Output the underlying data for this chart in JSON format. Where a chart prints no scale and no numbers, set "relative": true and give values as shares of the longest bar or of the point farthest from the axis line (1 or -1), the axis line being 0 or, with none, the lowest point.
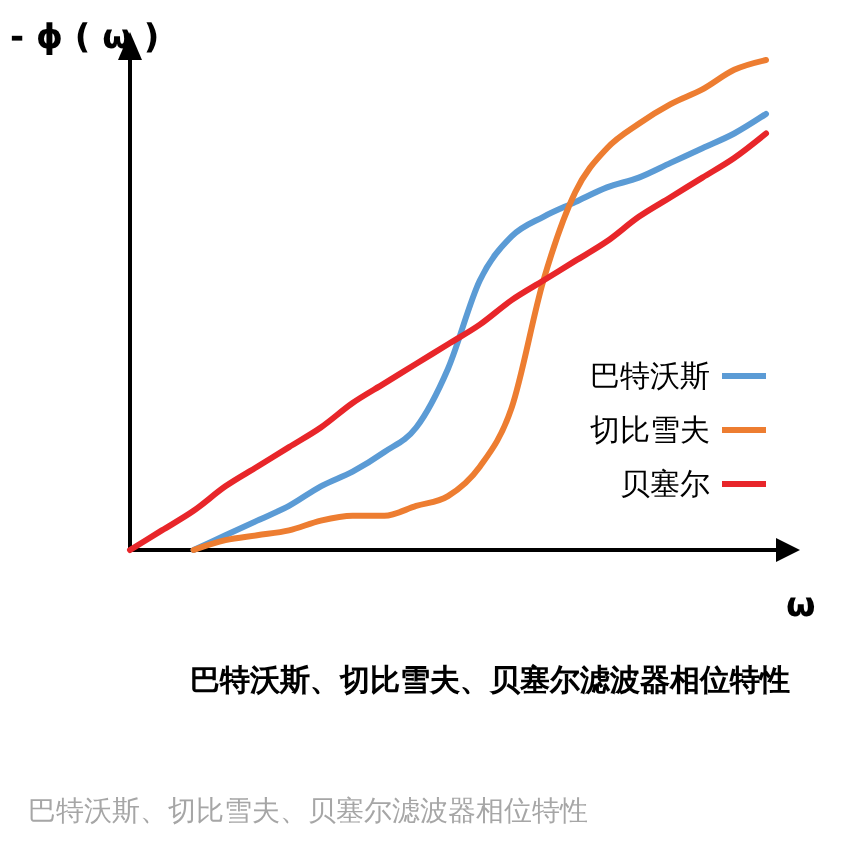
{
  "chart_data": {
    "type": "line",
    "relative": true,
    "title": "巴特沃斯、切比雪夫、贝塞尔滤波器相位特性",
    "xlabel": "ω",
    "ylabel": "- ϕ ( ω )",
    "annotations": [
      "巴特沃斯、切比雪夫、贝塞尔滤波器相位特性"
    ],
    "legend": "right",
    "categories": [
      null,
      null,
      null,
      null,
      null,
      null,
      null,
      null,
      null,
      null,
      null,
      null,
      null,
      null,
      null,
      null,
      null,
      null,
      null,
      null,
      null
    ],
    "series": [
      {
        "name": "巴特沃斯",
        "color": "#5b9bd5",
        "values": [
          null,
          null,
          0,
          0.03,
          0.06,
          0.09,
          0.13,
          0.16,
          0.2,
          0.25,
          0.37,
          0.55,
          0.64,
          0.68,
          0.71,
          0.74,
          0.76,
          0.79,
          0.82,
          0.85,
          0.89
        ]
      },
      {
        "name": "切比雪夫",
        "color": "#ed7d31",
        "values": [
          null,
          null,
          0,
          0.02,
          0.03,
          0.04,
          0.06,
          0.07,
          0.07,
          0.09,
          0.11,
          0.17,
          0.29,
          0.55,
          0.73,
          0.82,
          0.87,
          0.91,
          0.94,
          0.98,
          1
        ]
      },
      {
        "name": "贝塞尔",
        "color": "#e8262a",
        "values": [
          0,
          0.04,
          0.08,
          0.13,
          0.17,
          0.21,
          0.25,
          0.3,
          0.34,
          0.38,
          0.42,
          0.46,
          0.51,
          0.55,
          0.59,
          0.63,
          0.68,
          0.72,
          0.76,
          0.8,
          0.85
        ]
      }
    ]
  }
}
